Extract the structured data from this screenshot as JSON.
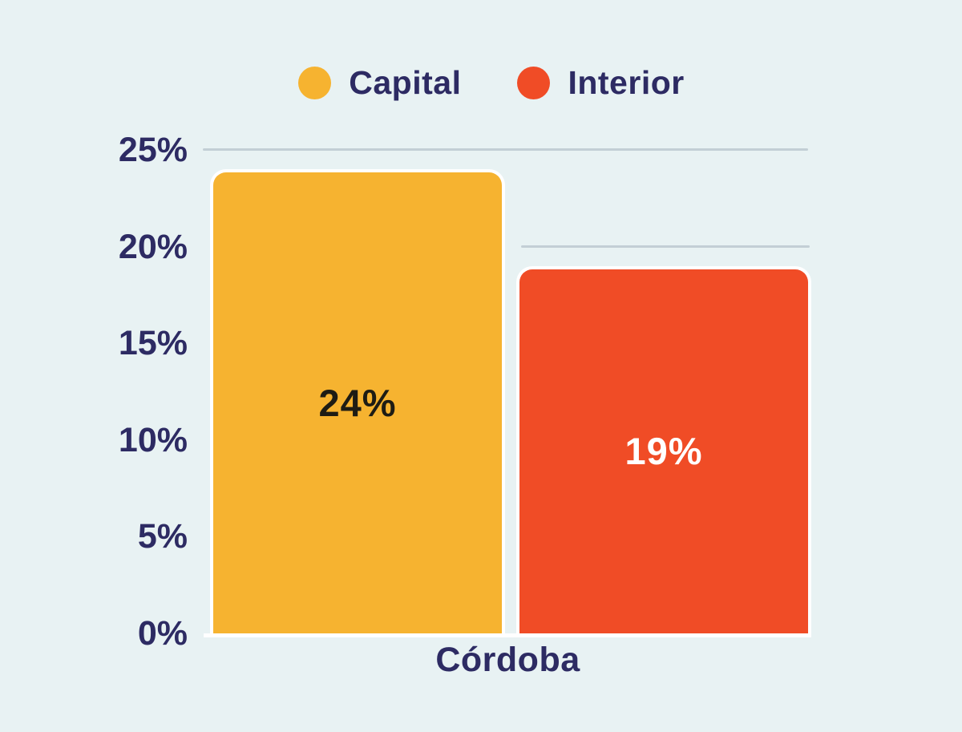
{
  "colors": {
    "background": "#E8F2F3",
    "text": "#2D2B63",
    "gridline": "#C3CFD5",
    "axis_line": "#FFFFFF"
  },
  "legend": {
    "position": "top-center"
  },
  "chart_data": {
    "type": "bar",
    "categories": [
      "Córdoba"
    ],
    "series": [
      {
        "name": "Capital",
        "values": [
          24
        ],
        "color": "#F6B330",
        "data_label": "24%",
        "data_label_color": "#1E1C14"
      },
      {
        "name": "Interior",
        "values": [
          19
        ],
        "color": "#F04C26",
        "data_label": "19%",
        "data_label_color": "#FFFFFF"
      }
    ],
    "title": "",
    "xlabel": "",
    "ylabel": "",
    "ylim": [
      0,
      25
    ],
    "ytick_labels": [
      "25%",
      "20%",
      "15%",
      "10%",
      "5%",
      "0%"
    ],
    "ytick_values": [
      25,
      20,
      15,
      10,
      5,
      0
    ],
    "grid": "horizontal line at 25% full width; horizontal line at 20% only right of first bar",
    "legend_position": "top"
  }
}
